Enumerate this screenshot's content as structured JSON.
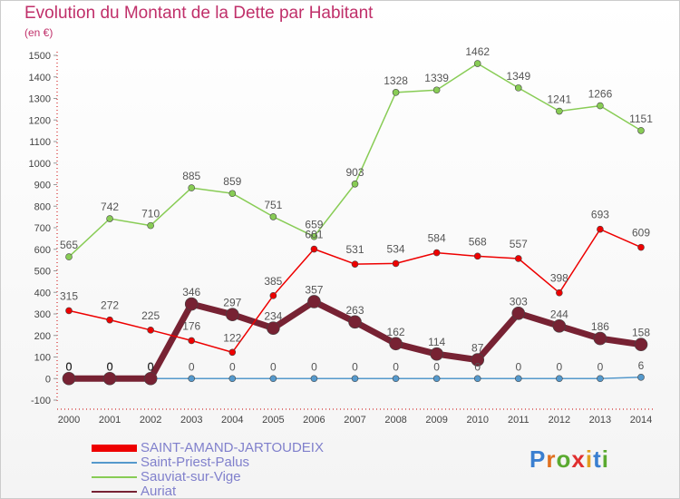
{
  "header": {
    "title": "Evolution du Montant de la Dette par Habitant",
    "subtitle": "(en €)"
  },
  "logo": {
    "text": "Proxiti"
  },
  "chart_data": {
    "type": "line",
    "title": "Evolution du Montant de la Dette par Habitant",
    "ylabel": "(en €)",
    "x": [
      "2000",
      "2001",
      "2002",
      "2003",
      "2004",
      "2005",
      "2006",
      "2007",
      "2008",
      "2009",
      "2010",
      "2011",
      "2012",
      "2013",
      "2014"
    ],
    "ylim": [
      -100,
      1500
    ],
    "yticks": [
      -100,
      0,
      100,
      200,
      300,
      400,
      500,
      600,
      700,
      800,
      900,
      1000,
      1100,
      1200,
      1300,
      1400,
      1500
    ],
    "grid": false,
    "legend": "bottom-left",
    "series": [
      {
        "name": "SAINT-AMAND-JARTOUDEIX",
        "color": "#ee0000",
        "values": [
          315,
          272,
          225,
          176,
          122,
          385,
          601,
          531,
          534,
          584,
          568,
          557,
          398,
          693,
          609
        ]
      },
      {
        "name": "Saint-Priest-Palus",
        "color": "#5599cc",
        "values": [
          0,
          0,
          0,
          0,
          0,
          0,
          0,
          0,
          0,
          0,
          0,
          0,
          0,
          0,
          6
        ]
      },
      {
        "name": "Sauviat-sur-Vige",
        "color": "#88cc55",
        "values": [
          565,
          742,
          710,
          885,
          859,
          751,
          659,
          903,
          1328,
          1339,
          1462,
          1349,
          1241,
          1266,
          1151
        ]
      },
      {
        "name": "Auriat",
        "color": "#772233",
        "values": [
          0,
          0,
          0,
          346,
          297,
          234,
          357,
          263,
          162,
          114,
          87,
          303,
          244,
          186,
          158
        ]
      }
    ]
  }
}
